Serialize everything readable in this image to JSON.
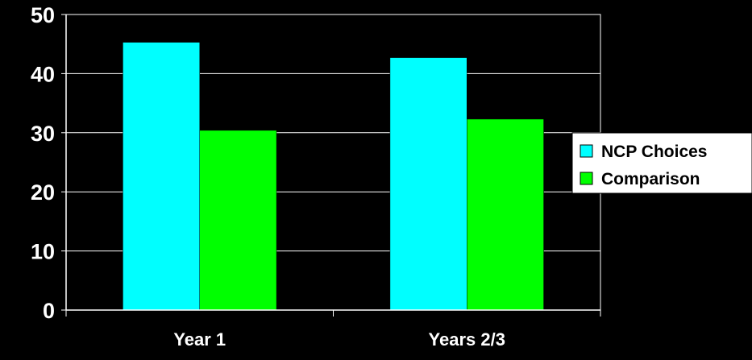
{
  "chart_data": {
    "type": "bar",
    "categories": [
      "Year 1",
      "Years 2/3"
    ],
    "series": [
      {
        "name": "NCP Choices",
        "values": [
          45.3,
          42.7
        ],
        "color": "#00ffff"
      },
      {
        "name": "Comparison",
        "values": [
          30.4,
          32.3
        ],
        "color": "#00ff00"
      }
    ],
    "y_ticks": [
      "0",
      "10",
      "20",
      "30",
      "40",
      "50"
    ],
    "ylim": [
      0,
      50
    ],
    "grid": true,
    "legend_position": "right",
    "background_color": "#000000",
    "plot_background": "#000000",
    "gridline_color": "#ffffff",
    "text_color": "#ffffff"
  }
}
